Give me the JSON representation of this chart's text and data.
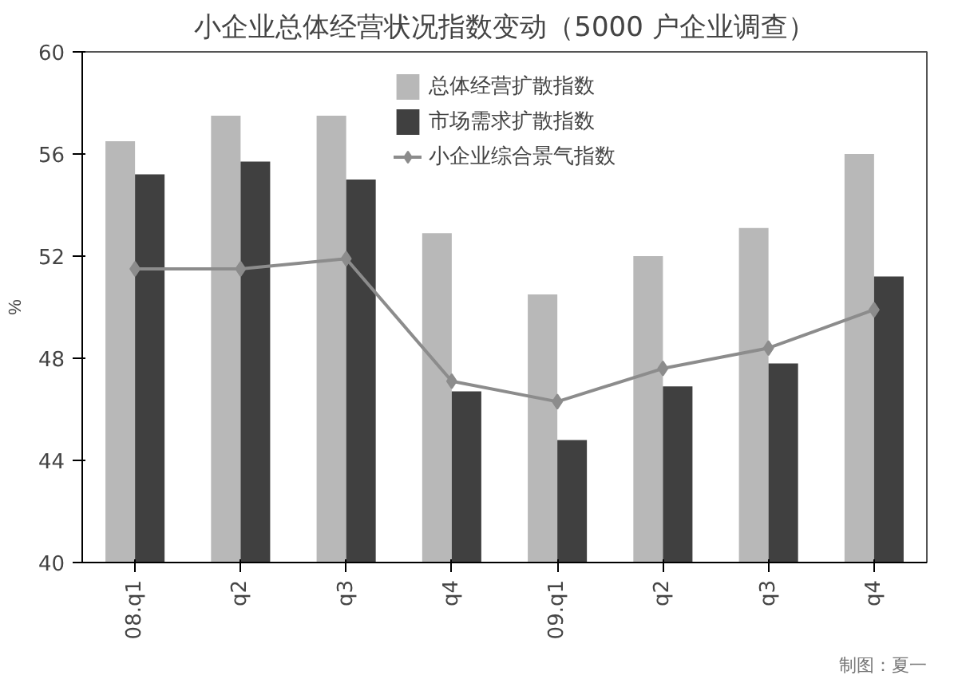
{
  "chart_data": {
    "type": "bar",
    "title": "小企业总体经营状况指数变动（5000 户企业调查）",
    "ylabel": "%",
    "categories": [
      "08.q1",
      "q2",
      "q3",
      "q4",
      "09.q1",
      "q2",
      "q3",
      "q4"
    ],
    "series": [
      {
        "name": "总体经营扩散指数",
        "color": "#b8b8b8",
        "values": [
          56.5,
          57.5,
          57.5,
          52.9,
          50.5,
          52.0,
          53.1,
          56.0
        ]
      },
      {
        "name": "市场需求扩散指数",
        "color": "#404040",
        "values": [
          55.2,
          55.7,
          55.0,
          46.7,
          44.8,
          46.9,
          47.8,
          51.2
        ]
      },
      {
        "name": "小企业综合景气指数",
        "type": "line",
        "color": "#8c8c8c",
        "marker": "diamond",
        "values": [
          51.5,
          51.5,
          51.9,
          47.1,
          46.3,
          47.6,
          48.4,
          49.9
        ]
      }
    ],
    "ylim": [
      40,
      60
    ],
    "yticks": [
      40,
      44,
      48,
      52,
      56,
      60
    ],
    "grid": false,
    "legend": "top right",
    "annotations": [
      "制图：夏一"
    ]
  }
}
